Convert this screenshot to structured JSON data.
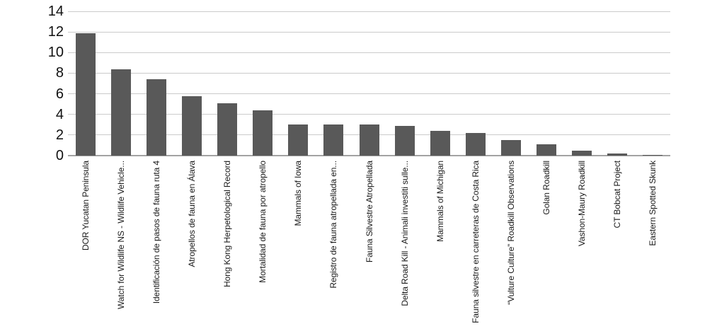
{
  "chart_data": {
    "type": "bar",
    "title": "",
    "xlabel": "",
    "ylabel": "",
    "legend": "none",
    "grid": "horizontal",
    "x_label_rotation": "90deg counterclockwise, end-anchored at axis",
    "ylim": [
      0,
      14
    ],
    "ytick_interval": 2,
    "ytick_labels": [
      "0",
      "2",
      "4",
      "6",
      "8",
      "10",
      "12",
      "14"
    ],
    "categories": [
      "DOR Yucatan Peninsula",
      "Watch for Wildlife NS - Wildlife Vehicle...",
      "Identificación de pasos de fauna ruta 4",
      "Atropellos de fauna en Álava",
      "Hong Kong Herpetological Record",
      "Mortalidad de fauna por atropello",
      "Mammals of Iowa",
      "Registro de fauna atropellada en...",
      "Fauna Silvestre Atropellada",
      "Delta Road Kill - Animali investiti sulle...",
      "Mammals of Michigan",
      "Fauna silvestre en carreteras de Costa Rica",
      "“Vulture Culture” Roadkill Observations",
      "Golan Roadkill",
      "Vashon-Maury Roadkill",
      "CT Bobcat Project",
      "Eastern Spotted Skunk"
    ],
    "values": [
      11.9,
      8.4,
      7.4,
      5.8,
      5.1,
      4.4,
      3.0,
      3.0,
      3.0,
      2.9,
      2.4,
      2.2,
      1.5,
      1.1,
      0.5,
      0.2,
      0.1
    ],
    "colors": {
      "bar": "#595959",
      "gridline": "#cbcbcb",
      "axis_line": "#a3a3a3",
      "text": "#1a1a1a",
      "background": "#ffffff"
    }
  }
}
